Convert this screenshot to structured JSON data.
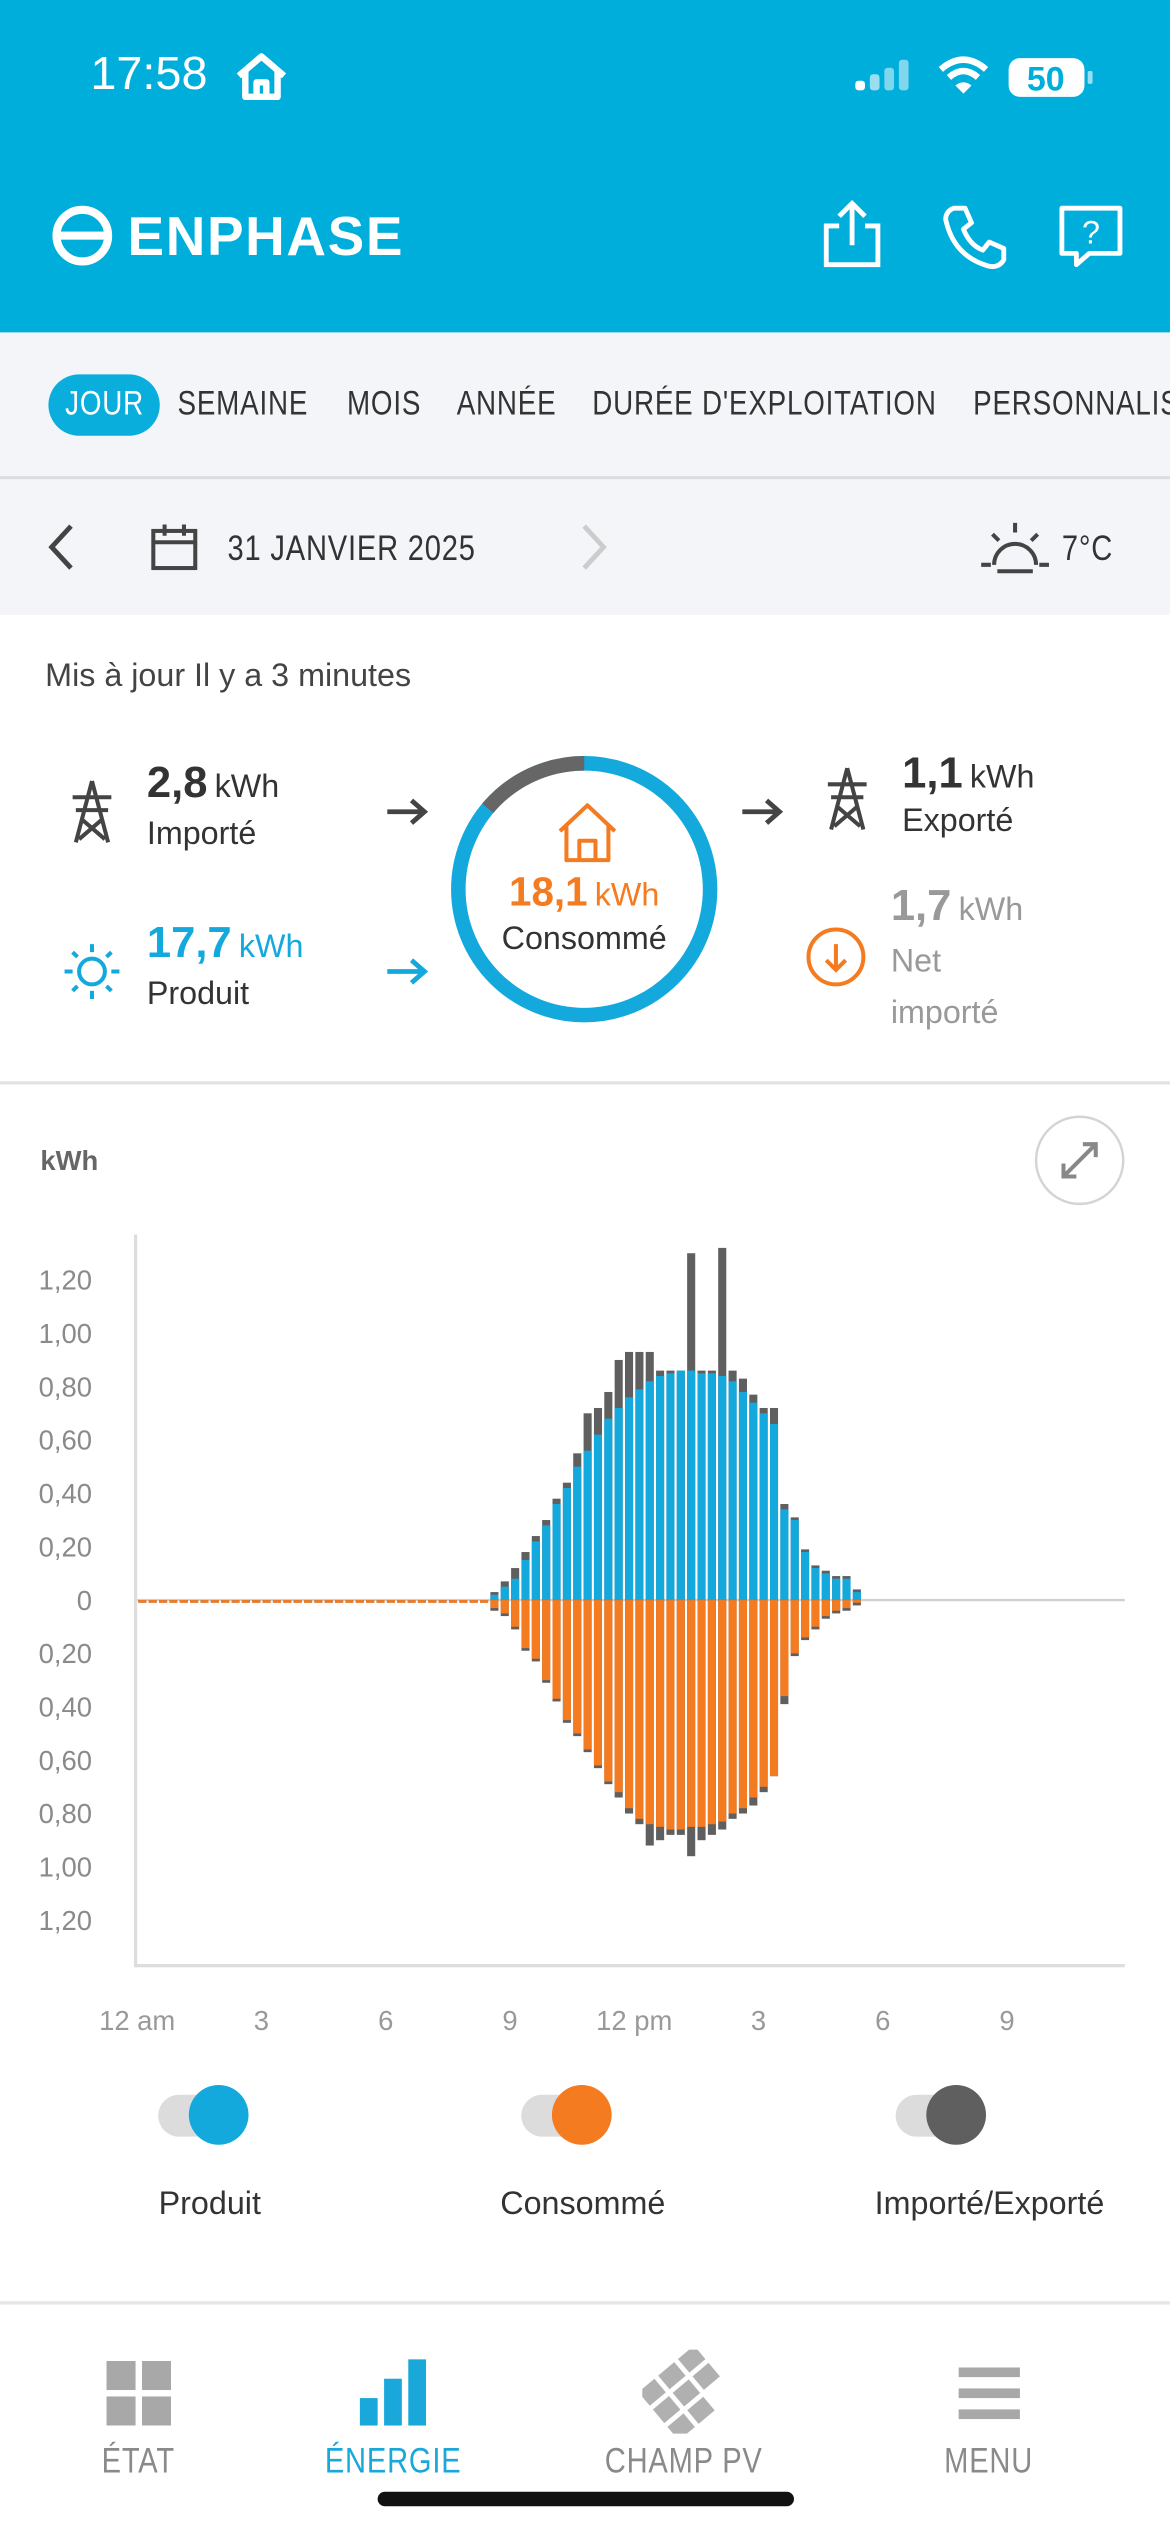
{
  "status_bar": {
    "time": "17:58",
    "battery": "50"
  },
  "header": {
    "logo": "ENPHASE"
  },
  "tabs": [
    {
      "label": "JOUR",
      "selected": true
    },
    {
      "label": "SEMAINE"
    },
    {
      "label": "MOIS"
    },
    {
      "label": "ANNÉE"
    },
    {
      "label": "DURÉE D'EXPLOITATION"
    },
    {
      "label": "PERSONNALISÉ"
    }
  ],
  "date_bar": {
    "date": "31 JANVIER 2025",
    "temperature": "7°C"
  },
  "updated": "Mis à jour Il y a 3 minutes",
  "summary": {
    "imported": {
      "value": "2,8",
      "unit": "kWh",
      "label": "Importé"
    },
    "produced": {
      "value": "17,7",
      "unit": "kWh",
      "label": "Produit"
    },
    "consumed": {
      "value": "18,1",
      "unit": "kWh",
      "label": "Consommé"
    },
    "exported": {
      "value": "1,1",
      "unit": "kWh",
      "label": "Exporté"
    },
    "net": {
      "value": "1,7",
      "unit": "kWh",
      "label": "Net importé"
    }
  },
  "chart_data": {
    "type": "bar",
    "y_label": "kWh",
    "categories": [
      "12 am",
      null,
      null,
      null,
      null,
      null,
      null,
      null,
      null,
      null,
      null,
      null,
      "3",
      null,
      null,
      null,
      null,
      null,
      null,
      null,
      null,
      null,
      null,
      null,
      "6",
      null,
      null,
      null,
      null,
      null,
      null,
      null,
      null,
      null,
      null,
      null,
      "9",
      null,
      null,
      null,
      null,
      null,
      null,
      null,
      null,
      null,
      null,
      null,
      "12 pm",
      null,
      null,
      null,
      null,
      null,
      null,
      null,
      null,
      null,
      null,
      null,
      "3",
      null,
      null,
      null,
      null,
      null,
      null,
      null,
      null,
      null,
      null,
      null,
      "6",
      null,
      null,
      null,
      null,
      null,
      null,
      null,
      null,
      null,
      null,
      null,
      "9",
      null,
      null,
      null,
      null,
      null,
      null,
      null,
      null,
      null,
      null,
      null
    ],
    "series": [
      {
        "name": "Produit",
        "color": "#13a9dc",
        "values": [
          0,
          0,
          0,
          0,
          0,
          0,
          0,
          0,
          0,
          0,
          0,
          0,
          0,
          0,
          0,
          0,
          0,
          0,
          0,
          0,
          0,
          0,
          0,
          0,
          0,
          0,
          0,
          0,
          0,
          0,
          0,
          0,
          0,
          0,
          0.02,
          0.05,
          0.08,
          0.15,
          0.22,
          0.28,
          0.36,
          0.42,
          0.5,
          0.56,
          0.62,
          0.68,
          0.72,
          0.76,
          0.79,
          0.82,
          0.84,
          0.85,
          0.86,
          0.86,
          0.85,
          0.85,
          0.84,
          0.82,
          0.78,
          0.74,
          0.7,
          0.66,
          0.34,
          0.3,
          0.18,
          0.12,
          0.1,
          0.08,
          0.08,
          0.03,
          null,
          null,
          null,
          null,
          null,
          null,
          null,
          null,
          null,
          null,
          null,
          null,
          null,
          null,
          null,
          null,
          null,
          null,
          null,
          null,
          null,
          null,
          null,
          null,
          null,
          null
        ]
      },
      {
        "name": "Consommé",
        "color": "#f47b20",
        "values": [
          -0.01,
          -0.01,
          -0.01,
          -0.01,
          -0.01,
          -0.01,
          -0.01,
          -0.01,
          -0.01,
          -0.01,
          -0.01,
          -0.01,
          -0.01,
          -0.01,
          -0.01,
          -0.01,
          -0.01,
          -0.01,
          -0.01,
          -0.01,
          -0.01,
          -0.01,
          -0.01,
          -0.01,
          -0.01,
          -0.01,
          -0.01,
          -0.01,
          -0.01,
          -0.01,
          -0.01,
          -0.01,
          -0.01,
          -0.01,
          -0.03,
          -0.05,
          -0.1,
          -0.18,
          -0.22,
          -0.3,
          -0.37,
          -0.45,
          -0.5,
          -0.56,
          -0.62,
          -0.68,
          -0.72,
          -0.78,
          -0.82,
          -0.84,
          -0.85,
          -0.86,
          -0.86,
          -0.85,
          -0.85,
          -0.84,
          -0.83,
          -0.8,
          -0.78,
          -0.74,
          -0.7,
          -0.66,
          -0.36,
          -0.2,
          -0.14,
          -0.1,
          -0.06,
          -0.04,
          -0.03,
          -0.01,
          null,
          null,
          null,
          null,
          null,
          null,
          null,
          null,
          null,
          null,
          null,
          null,
          null,
          null,
          null,
          null,
          null,
          null,
          null,
          null,
          null,
          null,
          null,
          null,
          null,
          null
        ]
      },
      {
        "name": "Importé/Exporté",
        "color": "#5f5f5f",
        "values": [
          0,
          0,
          0,
          0,
          0,
          0,
          0,
          0,
          0,
          0,
          0,
          0,
          0,
          0,
          0,
          0,
          0,
          0,
          0,
          0,
          0,
          0,
          0,
          0,
          0,
          0,
          0,
          0,
          0,
          0,
          0,
          0,
          0,
          0,
          0.03,
          0.07,
          0.12,
          0.18,
          0.24,
          0.3,
          0.38,
          0.44,
          0.55,
          0.7,
          0.72,
          0.78,
          0.9,
          0.93,
          0.93,
          0.93,
          0.86,
          0.86,
          0.86,
          1.3,
          0.86,
          0.86,
          1.32,
          0.86,
          0.83,
          0.77,
          0.72,
          0.72,
          0.36,
          0.31,
          0.19,
          0.13,
          0.11,
          0.09,
          0.09,
          0.04,
          null,
          null,
          null,
          null,
          null,
          null,
          null,
          null,
          null,
          null,
          null,
          null,
          null,
          null,
          null,
          null,
          null,
          null,
          null,
          null,
          null,
          null,
          null,
          null,
          null,
          null
        ],
        "imported": [
          -0.01,
          -0.01,
          -0.01,
          -0.01,
          -0.01,
          -0.01,
          -0.01,
          -0.01,
          -0.01,
          -0.01,
          -0.01,
          -0.01,
          -0.01,
          -0.01,
          -0.01,
          -0.01,
          -0.01,
          -0.01,
          -0.01,
          -0.01,
          -0.01,
          -0.01,
          -0.01,
          -0.01,
          -0.01,
          -0.01,
          -0.01,
          -0.01,
          -0.01,
          -0.01,
          -0.01,
          -0.01,
          -0.01,
          -0.01,
          -0.04,
          -0.06,
          -0.11,
          -0.19,
          -0.23,
          -0.31,
          -0.38,
          -0.46,
          -0.51,
          -0.57,
          -0.63,
          -0.69,
          -0.74,
          -0.8,
          -0.84,
          -0.92,
          -0.9,
          -0.88,
          -0.88,
          -0.96,
          -0.9,
          -0.88,
          -0.86,
          -0.82,
          -0.8,
          -0.77,
          -0.72,
          -0.66,
          -0.39,
          -0.21,
          -0.15,
          -0.11,
          -0.07,
          -0.05,
          -0.04,
          -0.02,
          null,
          null,
          null,
          null,
          null,
          null,
          null,
          null,
          null,
          null,
          null,
          null,
          null,
          null,
          null,
          null,
          null,
          null,
          null,
          null,
          null,
          null,
          null,
          null,
          null,
          null
        ]
      }
    ],
    "ylim": [
      -1.37,
      1.37
    ],
    "yticks": [
      {
        "value": 1.2,
        "label": "1,20"
      },
      {
        "value": 1,
        "label": "1,00"
      },
      {
        "value": 0.8,
        "label": "0,80"
      },
      {
        "value": 0.6,
        "label": "0,60"
      },
      {
        "value": 0.4,
        "label": "0,40"
      },
      {
        "value": 0.2,
        "label": "0,20"
      },
      0,
      {
        "value": -0.2,
        "label": "0,20"
      },
      {
        "value": -0.4,
        "label": "0,40"
      },
      {
        "value": -0.6,
        "label": "0,60"
      },
      {
        "value": -0.8,
        "label": "0,80"
      },
      {
        "value": -1,
        "label": "1,00"
      },
      {
        "value": -1.2,
        "label": "1,20"
      }
    ],
    "grid": false
  },
  "nav": [
    {
      "label": "ÉTAT"
    },
    {
      "label": "ÉNERGIE",
      "selected": true
    },
    {
      "label": "CHAMP PV"
    },
    {
      "label": "MENU"
    }
  ]
}
